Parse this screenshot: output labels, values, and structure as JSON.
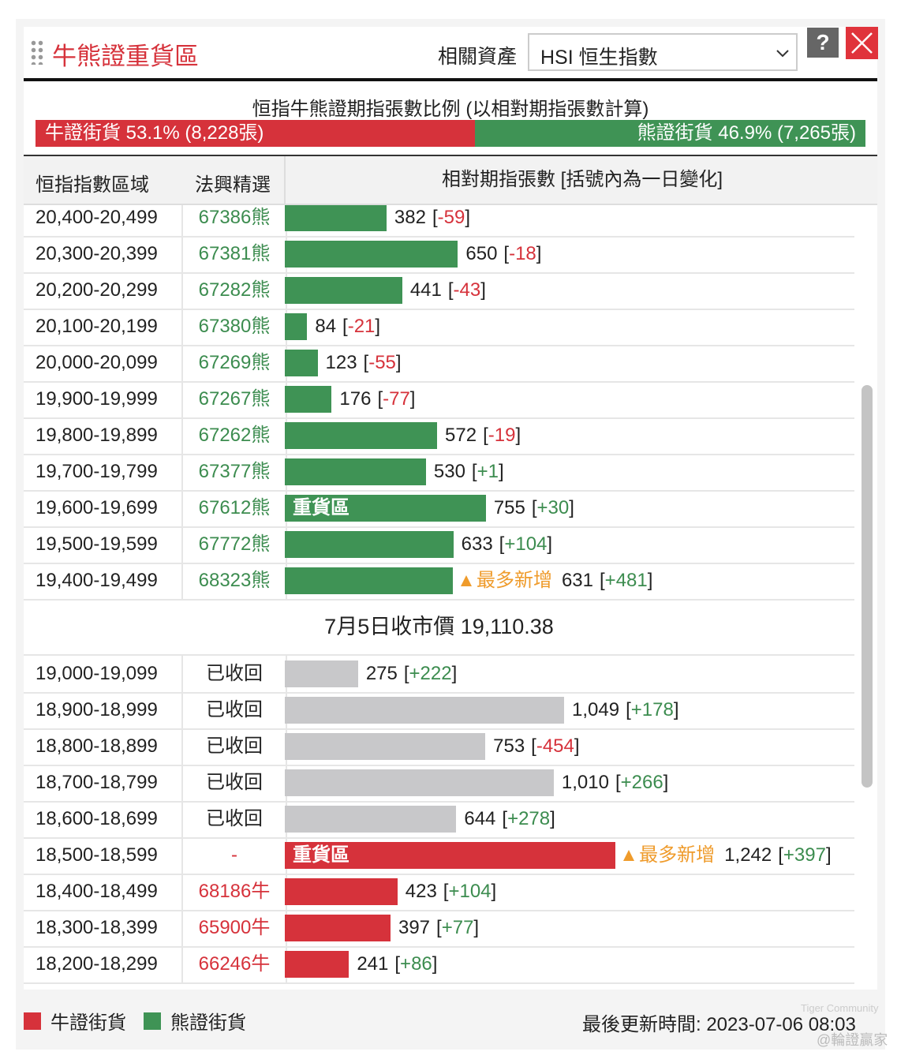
{
  "header": {
    "title": "牛熊證重貨區",
    "asset_label": "相關資產",
    "asset_value": "HSI 恒生指數",
    "help": "?"
  },
  "colors": {
    "bull": "#d6323b",
    "bear": "#3f9355",
    "recalled": "#c8c8ca"
  },
  "ratio": {
    "title": "恒指牛熊證期指張數比例 (以相對期指張數計算)",
    "values": [
      53.1,
      46.9
    ],
    "value_labels": [
      "牛證街貨 53.1% (8,228張)",
      "熊證街貨 46.9% (7,265張)"
    ]
  },
  "table": {
    "columns": [
      "恒指指數區域",
      "法興精選",
      "相對期指張數 [括號內為一日變化]"
    ],
    "brackets": [
      "[",
      "]"
    ],
    "rows_above": [
      {
        "range": "20,400-20,499",
        "pick": "67386熊",
        "value": 382,
        "change": -59,
        "kind": "bear"
      },
      {
        "range": "20,300-20,399",
        "pick": "67381熊",
        "value": 650,
        "change": -18,
        "kind": "bear"
      },
      {
        "range": "20,200-20,299",
        "pick": "67282熊",
        "value": 441,
        "change": -43,
        "kind": "bear"
      },
      {
        "range": "20,100-20,199",
        "pick": "67380熊",
        "value": 84,
        "change": -21,
        "kind": "bear"
      },
      {
        "range": "20,000-20,099",
        "pick": "67269熊",
        "value": 123,
        "change": -55,
        "kind": "bear"
      },
      {
        "range": "19,900-19,999",
        "pick": "67267熊",
        "value": 176,
        "change": -77,
        "kind": "bear"
      },
      {
        "range": "19,800-19,899",
        "pick": "67262熊",
        "value": 572,
        "change": -19,
        "kind": "bear"
      },
      {
        "range": "19,700-19,799",
        "pick": "67377熊",
        "value": 530,
        "change": 1,
        "change_label": "+1",
        "kind": "bear"
      },
      {
        "range": "19,600-19,699",
        "pick": "67612熊",
        "value": 755,
        "change": 30,
        "change_label": "+30",
        "kind": "bear",
        "tag": "重貨區"
      },
      {
        "range": "19,500-19,599",
        "pick": "67772熊",
        "value": 633,
        "change": 104,
        "change_label": "+104",
        "kind": "bear"
      },
      {
        "range": "19,400-19,499",
        "pick": "68323熊",
        "value": 631,
        "change": 481,
        "change_label": "+481",
        "kind": "bear",
        "note": "最多新增"
      }
    ],
    "close_price": "7月5日收市價 19,110.38",
    "rows_below": [
      {
        "range": "19,000-19,099",
        "pick": "已收回",
        "value": 275,
        "change": 222,
        "change_label": "+222",
        "kind": "recalled"
      },
      {
        "range": "18,900-18,999",
        "pick": "已收回",
        "value": 1049,
        "value_label": "1,049",
        "change": 178,
        "change_label": "+178",
        "kind": "recalled"
      },
      {
        "range": "18,800-18,899",
        "pick": "已收回",
        "value": 753,
        "change": -454,
        "kind": "recalled"
      },
      {
        "range": "18,700-18,799",
        "pick": "已收回",
        "value": 1010,
        "value_label": "1,010",
        "change": 266,
        "change_label": "+266",
        "kind": "recalled"
      },
      {
        "range": "18,600-18,699",
        "pick": "已收回",
        "value": 644,
        "change": 278,
        "change_label": "+278",
        "kind": "recalled"
      },
      {
        "range": "18,500-18,599",
        "pick": "-",
        "value": 1242,
        "value_label": "1,242",
        "change": 397,
        "change_label": "+397",
        "kind": "bull",
        "tag": "重貨區",
        "note": "最多新增"
      },
      {
        "range": "18,400-18,499",
        "pick": "68186牛",
        "value": 423,
        "change": 104,
        "change_label": "+104",
        "kind": "bull"
      },
      {
        "range": "18,300-18,399",
        "pick": "65900牛",
        "value": 397,
        "change": 77,
        "change_label": "+77",
        "kind": "bull"
      },
      {
        "range": "18,200-18,299",
        "pick": "66246牛",
        "value": 241,
        "change": 86,
        "change_label": "+86",
        "kind": "bull"
      }
    ]
  },
  "legend": [
    "牛證街貨",
    "熊證街貨"
  ],
  "footer": {
    "updated": "最後更新時間: 2023-07-06 08:03",
    "watermark": "Tiger Community",
    "handle": "@輪證贏家"
  }
}
